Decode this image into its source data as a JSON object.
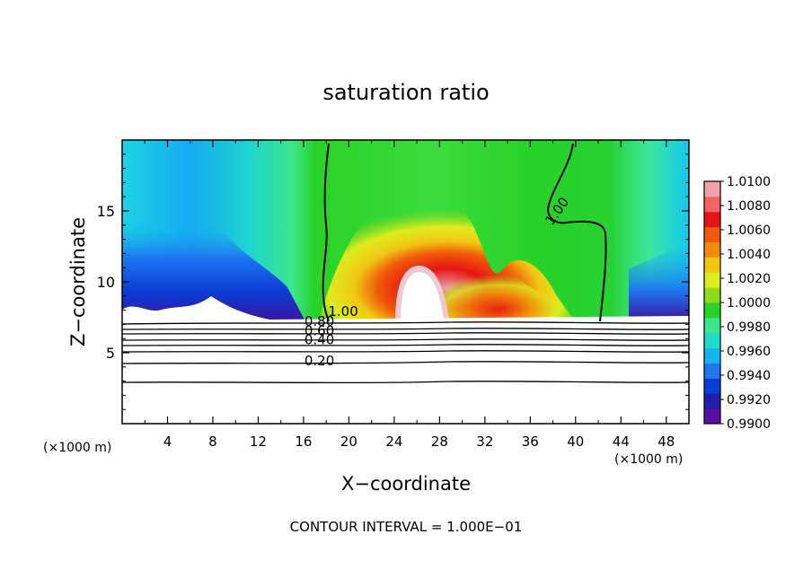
{
  "chart_data": {
    "type": "heatmap",
    "title": "saturation ratio",
    "xlabel": "X−coordinate",
    "ylabel": "Z−coordinate",
    "x_unit_label": "(×1000 m)",
    "y_unit_label": "(×1000 m)",
    "footer": "CONTOUR INTERVAL = 1.000E−01",
    "xlim": [
      0,
      50
    ],
    "ylim": [
      0,
      20
    ],
    "x_ticks": [
      "4",
      "8",
      "12",
      "16",
      "20",
      "24",
      "28",
      "32",
      "36",
      "40",
      "44",
      "48"
    ],
    "y_ticks": [
      "5",
      "10",
      "15"
    ],
    "colorbar": {
      "min": 0.99,
      "max": 1.01,
      "labels": [
        "0.9900",
        "0.9920",
        "0.9940",
        "0.9960",
        "0.9980",
        "1.0000",
        "1.0020",
        "1.0040",
        "1.0060",
        "1.0080",
        "1.0100"
      ],
      "colors": [
        "#5a0fa0",
        "#1e1ea8",
        "#0a3cd6",
        "#1e78f0",
        "#14b4f0",
        "#1edcc8",
        "#3ce68c",
        "#28d228",
        "#8cdc1e",
        "#dcec1e",
        "#f0c814",
        "#f08c0a",
        "#f05a0a",
        "#e61414",
        "#f06464",
        "#f0a0aa"
      ]
    },
    "contour_labels": [
      {
        "text": "1.00",
        "x": 19.5,
        "y": 7.6
      },
      {
        "text": "1.00",
        "x": 38.7,
        "y": 14.8
      },
      {
        "text": "0.80",
        "x": 17.4,
        "y": 6.9
      },
      {
        "text": "0.60",
        "x": 17.4,
        "y": 6.25
      },
      {
        "text": "0.40",
        "x": 17.4,
        "y": 5.6
      },
      {
        "text": "0.20",
        "x": 17.4,
        "y": 4.1
      }
    ],
    "contour_levels_below_cloud": [
      {
        "level": "0.80",
        "z": 7.1
      },
      {
        "level": "0.70",
        "z": 6.85
      },
      {
        "level": "0.60",
        "z": 6.55
      },
      {
        "level": "0.50",
        "z": 6.2
      },
      {
        "level": "0.40",
        "z": 5.85
      },
      {
        "level": "0.30",
        "z": 5.3
      },
      {
        "level": "0.20",
        "z": 4.4
      },
      {
        "level": "0.10",
        "z": 3.0
      }
    ]
  }
}
